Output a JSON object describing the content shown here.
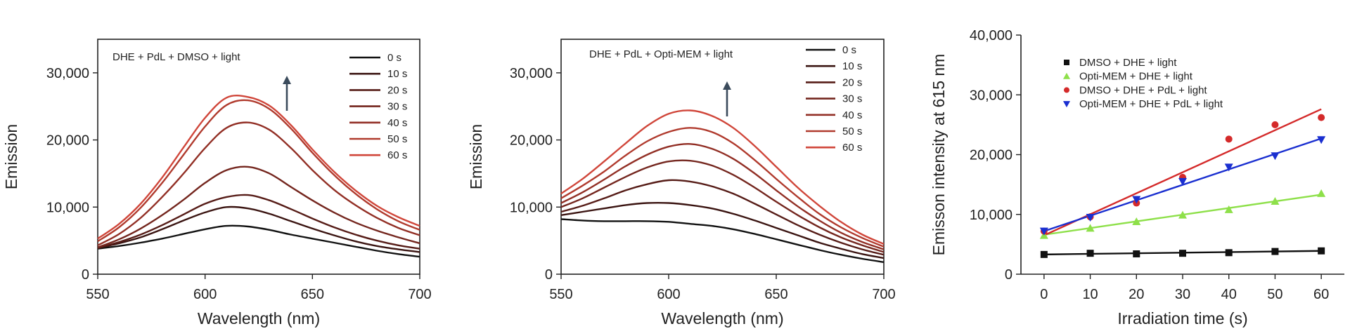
{
  "chart_data": [
    {
      "type": "line",
      "title": "",
      "annotation": "DHE + PdL + DMSO + light",
      "xlabel": "Wavelength (nm)",
      "ylabel": "Emission",
      "xlim": [
        550,
        700
      ],
      "ylim": [
        0,
        35000
      ],
      "xticks": [
        550,
        600,
        650,
        700
      ],
      "yticks": [
        0,
        10000,
        20000,
        30000
      ],
      "xtick_labels": [
        "550",
        "600",
        "650",
        "700"
      ],
      "ytick_labels": [
        "0",
        "10,000",
        "20,000",
        "30,000"
      ],
      "grid": false,
      "legend_position": "top-right",
      "x": [
        550,
        560,
        570,
        580,
        590,
        600,
        610,
        620,
        630,
        640,
        650,
        660,
        670,
        680,
        690,
        700
      ],
      "series": [
        {
          "name": "0 s",
          "color": "#111111",
          "values": [
            3800,
            4200,
            4700,
            5300,
            6000,
            6700,
            7200,
            7100,
            6600,
            5900,
            5300,
            4700,
            4100,
            3500,
            3000,
            2600
          ]
        },
        {
          "name": "10 s",
          "color": "#3a1411",
          "values": [
            3900,
            4600,
            5500,
            6700,
            8000,
            9200,
            10000,
            9800,
            9000,
            7900,
            6800,
            5800,
            4900,
            4200,
            3700,
            3300
          ]
        },
        {
          "name": "20 s",
          "color": "#561c17",
          "values": [
            3900,
            4800,
            5900,
            7300,
            8900,
            10500,
            11500,
            11800,
            11000,
            9700,
            8300,
            7000,
            5900,
            5000,
            4300,
            3800
          ]
        },
        {
          "name": "30 s",
          "color": "#74261e",
          "values": [
            4000,
            5200,
            6800,
            8800,
            11100,
            13600,
            15500,
            16000,
            15000,
            13000,
            11000,
            9200,
            7700,
            6500,
            5500,
            4600
          ]
        },
        {
          "name": "40 s",
          "color": "#922f25",
          "values": [
            4300,
            6000,
            8400,
            11500,
            15000,
            18800,
            21800,
            22600,
            21500,
            18800,
            15500,
            12600,
            10300,
            8400,
            6900,
            5800
          ]
        },
        {
          "name": "50 s",
          "color": "#b03a2d",
          "values": [
            4900,
            7000,
            9900,
            13600,
            17800,
            22000,
            25200,
            25900,
            24600,
            21700,
            18100,
            14800,
            12000,
            9700,
            7900,
            6600
          ]
        },
        {
          "name": "60 s",
          "color": "#d0463a",
          "values": [
            5300,
            7500,
            10500,
            14400,
            18900,
            23300,
            26300,
            26400,
            25100,
            22200,
            18600,
            15300,
            12500,
            10200,
            8500,
            7200
          ]
        }
      ]
    },
    {
      "type": "line",
      "title": "",
      "annotation": "DHE + PdL + Opti-MEM + light",
      "xlabel": "Wavelength (nm)",
      "ylabel": "Emission",
      "xlim": [
        550,
        700
      ],
      "ylim": [
        0,
        35000
      ],
      "xticks": [
        550,
        600,
        650,
        700
      ],
      "yticks": [
        0,
        10000,
        20000,
        30000
      ],
      "xtick_labels": [
        "550",
        "600",
        "650",
        "700"
      ],
      "ytick_labels": [
        "0",
        "10,000",
        "20,000",
        "30,000"
      ],
      "grid": false,
      "legend_position": "top-right",
      "x": [
        550,
        560,
        570,
        580,
        590,
        600,
        610,
        620,
        630,
        640,
        650,
        660,
        670,
        680,
        690,
        700
      ],
      "series": [
        {
          "name": "0 s",
          "color": "#111111",
          "values": [
            8200,
            8000,
            7900,
            7900,
            7900,
            7800,
            7500,
            7200,
            6700,
            6000,
            5200,
            4400,
            3600,
            2900,
            2300,
            1800
          ]
        },
        {
          "name": "10 s",
          "color": "#3a1411",
          "values": [
            8800,
            9300,
            9800,
            10300,
            10600,
            10600,
            10300,
            9800,
            9000,
            8000,
            6900,
            5800,
            4700,
            3800,
            3000,
            2400
          ]
        },
        {
          "name": "20 s",
          "color": "#561c17",
          "values": [
            9300,
            10200,
            11300,
            12500,
            13400,
            14000,
            13800,
            13100,
            12000,
            10500,
            8900,
            7300,
            5900,
            4700,
            3700,
            2900
          ]
        },
        {
          "name": "30 s",
          "color": "#74261e",
          "values": [
            10000,
            11300,
            12900,
            14500,
            15900,
            16800,
            16900,
            16200,
            14800,
            12900,
            10800,
            8800,
            7000,
            5500,
            4300,
            3300
          ]
        },
        {
          "name": "40 s",
          "color": "#922f25",
          "values": [
            10600,
            12200,
            14100,
            16100,
            17800,
            19000,
            19400,
            18700,
            17200,
            15000,
            12500,
            10100,
            8000,
            6200,
            4800,
            3700
          ]
        },
        {
          "name": "50 s",
          "color": "#b03a2d",
          "values": [
            11300,
            13200,
            15300,
            17700,
            19800,
            21200,
            21800,
            21200,
            19500,
            17000,
            14200,
            11500,
            9000,
            7000,
            5400,
            4100
          ]
        },
        {
          "name": "60 s",
          "color": "#d0463a",
          "values": [
            12000,
            14200,
            16800,
            19500,
            22100,
            23900,
            24400,
            23600,
            21800,
            19100,
            16000,
            12900,
            10200,
            7800,
            5900,
            4500
          ]
        }
      ]
    },
    {
      "type": "scatter",
      "title": "",
      "xlabel": "Irradiation time (s)",
      "ylabel": "Emisson intensity at 615 nm",
      "xlim": [
        -5,
        65
      ],
      "ylim": [
        0,
        40000
      ],
      "xticks": [
        0,
        10,
        20,
        30,
        40,
        50,
        60
      ],
      "yticks": [
        0,
        10000,
        20000,
        30000,
        40000
      ],
      "xtick_labels": [
        "0",
        "10",
        "20",
        "30",
        "40",
        "50",
        "60"
      ],
      "ytick_labels": [
        "0",
        "10,000",
        "20,000",
        "30,000",
        "40,000"
      ],
      "grid": false,
      "legend_position": "top-left",
      "x": [
        0,
        10,
        20,
        30,
        40,
        50,
        60
      ],
      "series": [
        {
          "name": "DMSO + DHE + light",
          "color": "#111111",
          "marker": "square",
          "values": [
            3300,
            3500,
            3400,
            3500,
            3600,
            3800,
            3900
          ],
          "fit": [
            3300,
            3900
          ]
        },
        {
          "name": "Opti-MEM + DHE + light",
          "color": "#8ee04a",
          "marker": "triangle-up",
          "values": [
            6500,
            7700,
            8800,
            9900,
            10800,
            12200,
            13500
          ],
          "fit": [
            6600,
            13300
          ]
        },
        {
          "name": "DMSO + DHE + PdL + light",
          "color": "#d42a2a",
          "marker": "circle",
          "values": [
            7200,
            9600,
            11900,
            16200,
            22600,
            25000,
            26200
          ],
          "fit": [
            6500,
            27600
          ]
        },
        {
          "name": "Opti-MEM + DHE + PdL + light",
          "color": "#1a2fd0",
          "marker": "triangle-down",
          "values": [
            7200,
            9500,
            12500,
            15500,
            17900,
            19800,
            22500
          ],
          "fit": [
            7200,
            22700
          ]
        }
      ]
    }
  ]
}
